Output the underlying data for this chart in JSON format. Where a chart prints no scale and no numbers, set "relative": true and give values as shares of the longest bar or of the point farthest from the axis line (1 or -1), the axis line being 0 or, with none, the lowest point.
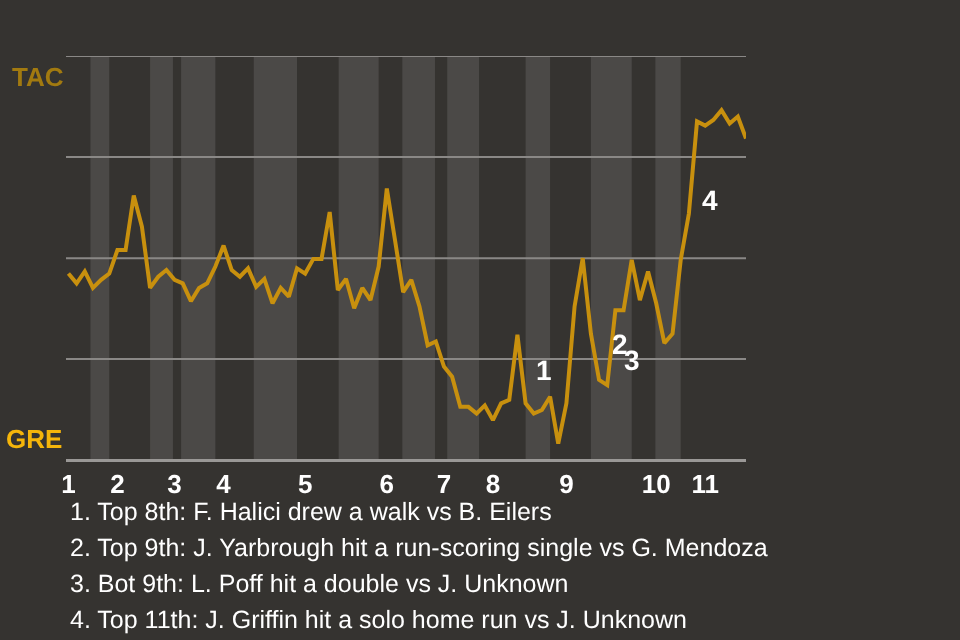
{
  "chart_data": {
    "type": "line",
    "relative": true,
    "categories": [
      "1",
      null,
      null,
      null,
      null,
      null,
      "2",
      null,
      null,
      null,
      null,
      null,
      null,
      "3",
      null,
      null,
      null,
      null,
      null,
      "4",
      null,
      null,
      null,
      null,
      null,
      null,
      null,
      null,
      null,
      "5",
      null,
      null,
      null,
      null,
      null,
      null,
      null,
      null,
      null,
      "6",
      null,
      null,
      null,
      null,
      null,
      null,
      "7",
      null,
      null,
      null,
      null,
      null,
      "8",
      null,
      null,
      null,
      null,
      null,
      null,
      null,
      null,
      "9",
      null,
      null,
      null,
      null,
      null,
      null,
      null,
      null,
      null,
      null,
      "10",
      null,
      null,
      null,
      null,
      null,
      "11",
      null,
      null,
      null,
      null,
      null
    ],
    "series": [
      {
        "color": "#c8900e",
        "values": [
          0.533,
          0.505,
          0.539,
          0.492,
          0.515,
          0.533,
          0.6,
          0.6,
          0.756,
          0.667,
          0.492,
          0.524,
          0.543,
          0.515,
          0.505,
          0.454,
          0.492,
          0.505,
          0.553,
          0.613,
          0.543,
          0.524,
          0.548,
          0.495,
          0.518,
          0.448,
          0.492,
          0.467,
          0.548,
          0.533,
          0.575,
          0.575,
          0.709,
          0.486,
          0.518,
          0.434,
          0.492,
          0.457,
          0.553,
          0.776,
          0.629,
          0.48,
          0.515,
          0.439,
          0.328,
          0.339,
          0.267,
          0.238,
          0.152,
          0.152,
          0.133,
          0.156,
          0.114,
          0.162,
          0.172,
          0.358,
          0.162,
          0.133,
          0.143,
          0.181,
          0.047,
          0.162,
          0.439,
          0.577,
          0.361,
          0.229,
          0.214,
          0.428,
          0.428,
          0.572,
          0.457,
          0.539,
          0.448,
          0.334,
          0.361,
          0.572,
          0.704,
          0.968,
          0.956,
          0.972,
          1,
          0.962,
          0.982,
          0.919
        ],
        "name": null
      }
    ],
    "grid": false,
    "marker": "none",
    "line_style": "solid",
    "ref_lines": [
      {
        "axis": "y",
        "value": 0,
        "label": "GRE",
        "color": "#9a9896"
      },
      {
        "axis": "y",
        "value": 0.289,
        "color": "#8a8886"
      },
      {
        "axis": "y",
        "value": 0.577,
        "color": "#8a8886"
      },
      {
        "axis": "y",
        "value": 0.866,
        "color": "#8a8886"
      },
      {
        "axis": "y",
        "value": 1.155,
        "label": "TAC",
        "color": "#8a8886"
      }
    ],
    "annotations": [
      "1",
      "2",
      "3",
      "4",
      "1. Top 8th: F. Halici drew a walk vs B. Eilers",
      "2. Top 9th: J. Yarbrough hit a run-scoring single vs G. Mendoza",
      "3. Bot 9th: L. Poff hit a double vs J. Unknown",
      "4. Top 11th: J. Griffin hit a solo home run vs J. Unknown"
    ]
  }
}
